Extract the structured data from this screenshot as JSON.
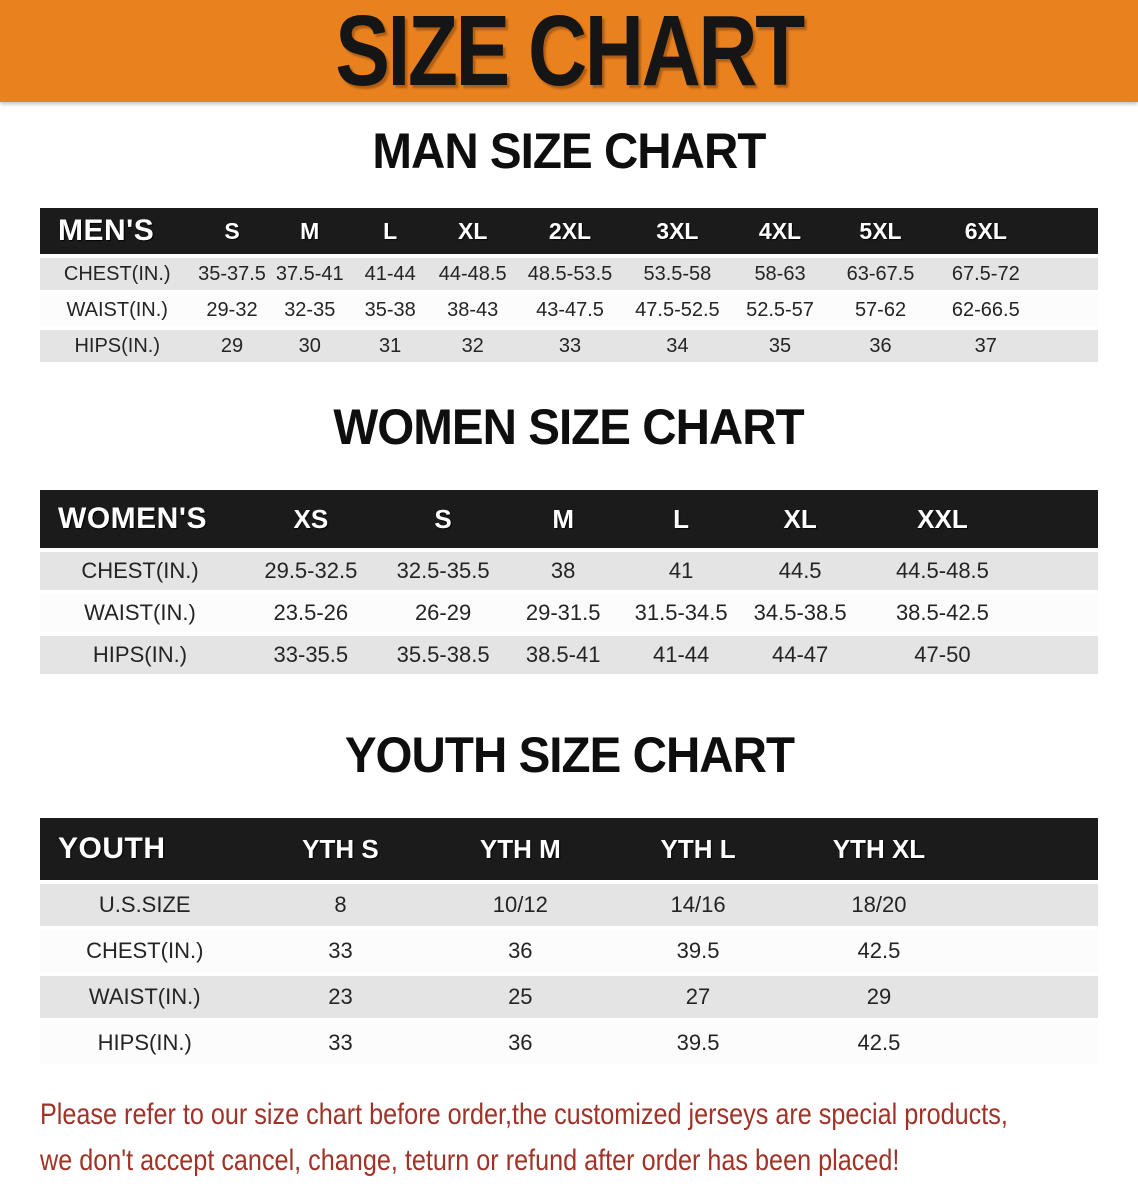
{
  "banner": {
    "title": "SIZE CHART"
  },
  "colors": {
    "banner_orange": "#E8811E",
    "table_header_black": "#1B1B1B",
    "row_gray": "#E4E4E4",
    "disclaimer_red": "#A03328"
  },
  "sections": {
    "men": {
      "heading": "MAN SIZE CHART",
      "table_label": "MEN'S",
      "columns": [
        "S",
        "M",
        "L",
        "XL",
        "2XL",
        "3XL",
        "4XL",
        "5XL",
        "6XL"
      ],
      "rows": [
        {
          "label": "CHEST(IN.)",
          "values": [
            "35-37.5",
            "37.5-41",
            "41-44",
            "44-48.5",
            "48.5-53.5",
            "53.5-58",
            "58-63",
            "63-67.5",
            "67.5-72"
          ]
        },
        {
          "label": "WAIST(IN.)",
          "values": [
            "29-32",
            "32-35",
            "35-38",
            "38-43",
            "43-47.5",
            "47.5-52.5",
            "52.5-57",
            "57-62",
            "62-66.5"
          ]
        },
        {
          "label": "HIPS(IN.)",
          "values": [
            "29",
            "30",
            "31",
            "32",
            "33",
            "34",
            "35",
            "36",
            "37"
          ]
        }
      ]
    },
    "women": {
      "heading": "WOMEN SIZE CHART",
      "table_label": "WOMEN'S",
      "columns": [
        "XS",
        "S",
        "M",
        "L",
        "XL",
        "XXL"
      ],
      "rows": [
        {
          "label": "CHEST(IN.)",
          "values": [
            "29.5-32.5",
            "32.5-35.5",
            "38",
            "41",
            "44.5",
            "44.5-48.5"
          ]
        },
        {
          "label": "WAIST(IN.)",
          "values": [
            "23.5-26",
            "26-29",
            "29-31.5",
            "31.5-34.5",
            "34.5-38.5",
            "38.5-42.5"
          ]
        },
        {
          "label": "HIPS(IN.)",
          "values": [
            "33-35.5",
            "35.5-38.5",
            "38.5-41",
            "41-44",
            "44-47",
            "47-50"
          ]
        }
      ]
    },
    "youth": {
      "heading": "YOUTH SIZE CHART",
      "table_label": "YOUTH",
      "columns": [
        "YTH S",
        "YTH M",
        "YTH L",
        "YTH XL"
      ],
      "rows": [
        {
          "label": "U.S.SIZE",
          "values": [
            "8",
            "10/12",
            "14/16",
            "18/20"
          ]
        },
        {
          "label": "CHEST(IN.)",
          "values": [
            "33",
            "36",
            "39.5",
            "42.5"
          ]
        },
        {
          "label": "WAIST(IN.)",
          "values": [
            "23",
            "25",
            "27",
            "29"
          ]
        },
        {
          "label": "HIPS(IN.)",
          "values": [
            "33",
            "36",
            "39.5",
            "42.5"
          ]
        }
      ]
    }
  },
  "disclaimer": {
    "line1": "Please refer to our size chart before order,the customized jerseys are special products,",
    "line2": "we don't accept cancel, change, teturn or refund after order has been placed!"
  }
}
